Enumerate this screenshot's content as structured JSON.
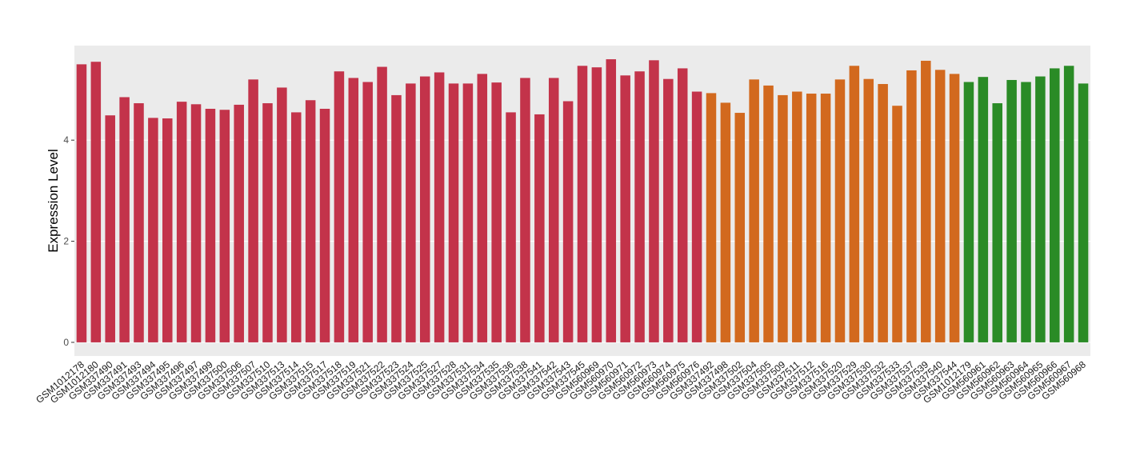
{
  "chart_data": {
    "type": "bar",
    "y_label": "Expression Level",
    "categories": [
      "GSM1012178",
      "GSM1012180",
      "GSM337490",
      "GSM337491",
      "GSM337493",
      "GSM337494",
      "GSM337495",
      "GSM337496",
      "GSM337497",
      "GSM337499",
      "GSM337500",
      "GSM337506",
      "GSM337507",
      "GSM337510",
      "GSM337513",
      "GSM337514",
      "GSM337515",
      "GSM337517",
      "GSM337518",
      "GSM337519",
      "GSM337521",
      "GSM337522",
      "GSM337523",
      "GSM337524",
      "GSM337525",
      "GSM337527",
      "GSM337528",
      "GSM337531",
      "GSM337534",
      "GSM337535",
      "GSM337536",
      "GSM337538",
      "GSM337541",
      "GSM337542",
      "GSM337543",
      "GSM337545",
      "GSM560969",
      "GSM560970",
      "GSM560971",
      "GSM560972",
      "GSM560973",
      "GSM560974",
      "GSM560975",
      "GSM560976",
      "GSM337492",
      "GSM337498",
      "GSM337502",
      "GSM337504",
      "GSM337505",
      "GSM337509",
      "GSM337511",
      "GSM337512",
      "GSM337516",
      "GSM337520",
      "GSM337529",
      "GSM337530",
      "GSM337532",
      "GSM337533",
      "GSM337537",
      "GSM337539",
      "GSM337540",
      "GSM337544",
      "GSM1012179",
      "GSM560961",
      "GSM560962",
      "GSM560963",
      "GSM560964",
      "GSM560965",
      "GSM560966",
      "GSM560967",
      "GSM560968"
    ],
    "values": [
      5.5,
      5.55,
      4.49,
      4.85,
      4.73,
      4.44,
      4.43,
      4.76,
      4.71,
      4.62,
      4.6,
      4.7,
      5.2,
      4.73,
      5.04,
      4.55,
      4.79,
      4.62,
      5.36,
      5.23,
      5.15,
      5.45,
      4.89,
      5.12,
      5.26,
      5.34,
      5.12,
      5.12,
      5.31,
      5.14,
      4.55,
      5.23,
      4.51,
      5.23,
      4.77,
      5.47,
      5.44,
      5.6,
      5.28,
      5.36,
      5.58,
      5.21,
      5.42,
      4.96,
      4.93,
      4.74,
      4.54,
      5.2,
      5.08,
      4.89,
      4.96,
      4.92,
      4.92,
      5.2,
      5.47,
      5.21,
      5.11,
      4.68,
      5.38,
      5.57,
      5.39,
      5.31,
      5.15,
      5.25,
      4.73,
      5.19,
      5.15,
      5.26,
      5.42,
      5.47,
      5.12
    ],
    "colors": [
      "#c3334a",
      "#c3334a",
      "#c3334a",
      "#c3334a",
      "#c3334a",
      "#c3334a",
      "#c3334a",
      "#c3334a",
      "#c3334a",
      "#c3334a",
      "#c3334a",
      "#c3334a",
      "#c3334a",
      "#c3334a",
      "#c3334a",
      "#c3334a",
      "#c3334a",
      "#c3334a",
      "#c3334a",
      "#c3334a",
      "#c3334a",
      "#c3334a",
      "#c3334a",
      "#c3334a",
      "#c3334a",
      "#c3334a",
      "#c3334a",
      "#c3334a",
      "#c3334a",
      "#c3334a",
      "#c3334a",
      "#c3334a",
      "#c3334a",
      "#c3334a",
      "#c3334a",
      "#c3334a",
      "#c3334a",
      "#c3334a",
      "#c3334a",
      "#c3334a",
      "#c3334a",
      "#c3334a",
      "#c3334a",
      "#c3334a",
      "#d2691e",
      "#d2691e",
      "#d2691e",
      "#d2691e",
      "#d2691e",
      "#d2691e",
      "#d2691e",
      "#d2691e",
      "#d2691e",
      "#d2691e",
      "#d2691e",
      "#d2691e",
      "#d2691e",
      "#d2691e",
      "#d2691e",
      "#d2691e",
      "#d2691e",
      "#d2691e",
      "#2a8b26",
      "#2a8b26",
      "#2a8b26",
      "#2a8b26",
      "#2a8b26",
      "#2a8b26",
      "#2a8b26",
      "#2a8b26",
      "#2a8b26"
    ],
    "ylim": [
      -0.27,
      5.87
    ],
    "yticks": [
      0,
      2,
      4
    ],
    "grid": true
  }
}
